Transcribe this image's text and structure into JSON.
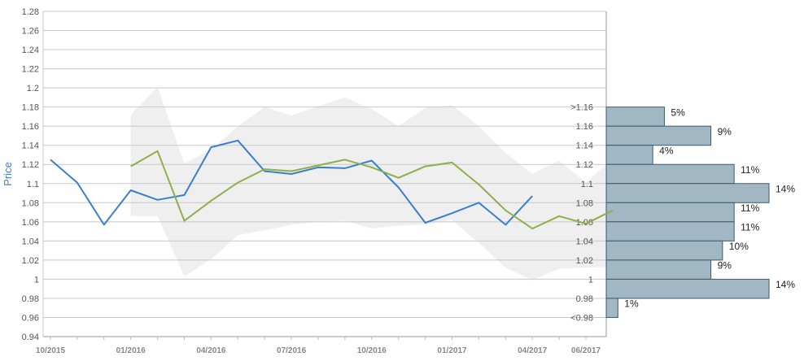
{
  "chart_data": {
    "type": "line",
    "ylabel": "Price",
    "ylim": [
      0.94,
      1.28
    ],
    "y_ticks": [
      "1.28",
      "1.26",
      "1.24",
      "1.22",
      "1.2",
      "1.18",
      "1.16",
      "1.14",
      "1.12",
      "1.1",
      "1.08",
      "1.06",
      "1.04",
      "1.02",
      "1",
      "0.98",
      "0.96",
      "0.94"
    ],
    "x_ticks": [
      "10/2015",
      "01/2016",
      "04/2016",
      "07/2016",
      "10/2016",
      "01/2017",
      "04/2017",
      "06/2017"
    ],
    "grid": true,
    "series": [
      {
        "color": "#3a7fcf",
        "points": [
          [
            "10/2015",
            1.125
          ],
          [
            "11/2015",
            1.101
          ],
          [
            "12/2015",
            1.057
          ],
          [
            "01/2016",
            1.093
          ],
          [
            "02/2016",
            1.083
          ],
          [
            "03/2016",
            1.088
          ],
          [
            "04/2016",
            1.138
          ],
          [
            "05/2016",
            1.145
          ],
          [
            "06/2016",
            1.113
          ],
          [
            "07/2016",
            1.11
          ],
          [
            "08/2016",
            1.117
          ],
          [
            "09/2016",
            1.116
          ],
          [
            "10/2016",
            1.124
          ],
          [
            "11/2016",
            1.096
          ],
          [
            "12/2016",
            1.059
          ],
          [
            "01/2017",
            1.069
          ],
          [
            "02/2017",
            1.08
          ],
          [
            "03/2017",
            1.057
          ],
          [
            "04/2017",
            1.087
          ]
        ]
      },
      {
        "color": "#8db048",
        "points": [
          [
            "01/2016",
            1.118
          ],
          [
            "02/2016",
            1.134
          ],
          [
            "03/2016",
            1.061
          ],
          [
            "04/2016",
            1.082
          ],
          [
            "05/2016",
            1.101
          ],
          [
            "06/2016",
            1.115
          ],
          [
            "07/2016",
            1.113
          ],
          [
            "08/2016",
            1.119
          ],
          [
            "09/2016",
            1.125
          ],
          [
            "10/2016",
            1.117
          ],
          [
            "11/2016",
            1.106
          ],
          [
            "12/2016",
            1.118
          ],
          [
            "01/2017",
            1.122
          ],
          [
            "02/2017",
            1.099
          ],
          [
            "03/2017",
            1.072
          ],
          [
            "04/2017",
            1.053
          ],
          [
            "05/2017",
            1.066
          ],
          [
            "06/2017",
            1.058
          ],
          [
            "07/2017",
            1.072
          ]
        ]
      }
    ],
    "band": {
      "color": "#efefef",
      "upper": [
        [
          "01/2016",
          1.172
        ],
        [
          "02/2016",
          1.201
        ],
        [
          "03/2016",
          1.121
        ],
        [
          "04/2016",
          1.135
        ],
        [
          "05/2016",
          1.16
        ],
        [
          "06/2016",
          1.18
        ],
        [
          "07/2016",
          1.171
        ],
        [
          "08/2016",
          1.181
        ],
        [
          "09/2016",
          1.19
        ],
        [
          "10/2016",
          1.178
        ],
        [
          "11/2016",
          1.16
        ],
        [
          "12/2016",
          1.179
        ],
        [
          "01/2017",
          1.182
        ],
        [
          "02/2017",
          1.16
        ],
        [
          "03/2017",
          1.132
        ],
        [
          "04/2017",
          1.11
        ],
        [
          "05/2017",
          1.124
        ],
        [
          "06/2017",
          1.101
        ],
        [
          "07/2017",
          1.126
        ]
      ],
      "lower": [
        [
          "01/2016",
          1.066
        ],
        [
          "02/2016",
          1.066
        ],
        [
          "03/2016",
          1.003
        ],
        [
          "04/2016",
          1.021
        ],
        [
          "05/2016",
          1.046
        ],
        [
          "06/2016",
          1.051
        ],
        [
          "07/2016",
          1.057
        ],
        [
          "08/2016",
          1.06
        ],
        [
          "09/2016",
          1.061
        ],
        [
          "10/2016",
          1.053
        ],
        [
          "11/2016",
          1.056
        ],
        [
          "12/2016",
          1.057
        ],
        [
          "01/2017",
          1.062
        ],
        [
          "02/2017",
          1.038
        ],
        [
          "03/2017",
          1.012
        ],
        [
          "04/2017",
          0.999
        ],
        [
          "05/2017",
          1.011
        ],
        [
          "06/2017",
          1.012
        ],
        [
          "07/2017",
          1.013
        ]
      ]
    },
    "histogram": {
      "color": "#a1b7c4",
      "border": "#3b5a6e",
      "bins": [
        {
          "label": ">1.16",
          "lo": 1.16,
          "hi": 1.18,
          "pct": 5,
          "text": "5%"
        },
        {
          "label": "1.16",
          "lo": 1.14,
          "hi": 1.16,
          "pct": 9,
          "text": "9%"
        },
        {
          "label": "1.14",
          "lo": 1.12,
          "hi": 1.14,
          "pct": 4,
          "text": "4%"
        },
        {
          "label": "1.12",
          "lo": 1.1,
          "hi": 1.12,
          "pct": 11,
          "text": "11%"
        },
        {
          "label": "1.1",
          "lo": 1.08,
          "hi": 1.1,
          "pct": 14,
          "text": "14%"
        },
        {
          "label": "1.08",
          "lo": 1.06,
          "hi": 1.08,
          "pct": 11,
          "text": "11%"
        },
        {
          "label": "1.06",
          "lo": 1.04,
          "hi": 1.06,
          "pct": 11,
          "text": "11%"
        },
        {
          "label": "1.04",
          "lo": 1.02,
          "hi": 1.04,
          "pct": 10,
          "text": "10%"
        },
        {
          "label": "1.02",
          "lo": 1.0,
          "hi": 1.02,
          "pct": 9,
          "text": "9%"
        },
        {
          "label": "1",
          "lo": 0.98,
          "hi": 1.0,
          "pct": 14,
          "text": "14%"
        },
        {
          "label": "0.98",
          "lo": 0.96,
          "hi": 0.98,
          "pct": 1,
          "text": "1%"
        },
        {
          "label": "<0.98",
          "lo": null,
          "hi": null,
          "pct": null,
          "text": ""
        }
      ]
    }
  }
}
